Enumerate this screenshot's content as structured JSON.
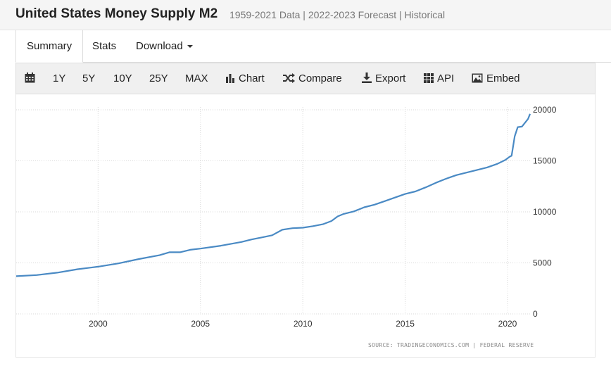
{
  "header": {
    "title": "United States Money Supply M2",
    "subtitle": "1959-2021 Data | 2022-2023 Forecast | Historical"
  },
  "tabs": [
    {
      "label": "Summary",
      "active": true
    },
    {
      "label": "Stats",
      "active": false
    },
    {
      "label": "Download",
      "active": false
    }
  ],
  "toolbar": {
    "calendar_icon": "calendar-icon",
    "ranges": [
      "1Y",
      "5Y",
      "10Y",
      "25Y",
      "MAX"
    ],
    "chart_label": "Chart",
    "compare_label": "Compare",
    "export_label": "Export",
    "api_label": "API",
    "embed_label": "Embed"
  },
  "source_text": "SOURCE: TRADINGECONOMICS.COM | FEDERAL RESERVE",
  "colors": {
    "line": "#4a8ac4",
    "grid": "#d9d9d9"
  },
  "chart_data": {
    "type": "line",
    "title": "",
    "xlabel": "",
    "ylabel": "",
    "xlim": [
      1996.0,
      2021.1
    ],
    "ylim": [
      0,
      20000
    ],
    "x_ticks": [
      2000,
      2005,
      2010,
      2015,
      2020
    ],
    "y_ticks": [
      0,
      5000,
      10000,
      15000,
      20000
    ],
    "grid": true,
    "y_axis_position": "right",
    "series": [
      {
        "points": [
          [
            1996.0,
            3700
          ],
          [
            1997.0,
            3810
          ],
          [
            1998.0,
            4040
          ],
          [
            1999.0,
            4380
          ],
          [
            2000.0,
            4630
          ],
          [
            2001.0,
            4950
          ],
          [
            2002.0,
            5380
          ],
          [
            2003.0,
            5750
          ],
          [
            2003.5,
            6050
          ],
          [
            2004.0,
            6040
          ],
          [
            2004.5,
            6280
          ],
          [
            2005.0,
            6400
          ],
          [
            2006.0,
            6680
          ],
          [
            2007.0,
            7050
          ],
          [
            2007.5,
            7300
          ],
          [
            2008.0,
            7500
          ],
          [
            2008.5,
            7700
          ],
          [
            2009.0,
            8250
          ],
          [
            2009.5,
            8400
          ],
          [
            2010.0,
            8450
          ],
          [
            2010.5,
            8600
          ],
          [
            2011.0,
            8800
          ],
          [
            2011.4,
            9100
          ],
          [
            2011.7,
            9550
          ],
          [
            2012.0,
            9800
          ],
          [
            2012.5,
            10050
          ],
          [
            2013.0,
            10450
          ],
          [
            2013.5,
            10700
          ],
          [
            2014.0,
            11050
          ],
          [
            2014.5,
            11400
          ],
          [
            2015.0,
            11750
          ],
          [
            2015.5,
            12000
          ],
          [
            2016.0,
            12400
          ],
          [
            2016.5,
            12850
          ],
          [
            2017.0,
            13250
          ],
          [
            2017.5,
            13600
          ],
          [
            2018.0,
            13850
          ],
          [
            2018.5,
            14100
          ],
          [
            2019.0,
            14350
          ],
          [
            2019.5,
            14700
          ],
          [
            2019.9,
            15100
          ],
          [
            2020.1,
            15400
          ],
          [
            2020.2,
            15500
          ],
          [
            2020.35,
            17400
          ],
          [
            2020.5,
            18300
          ],
          [
            2020.7,
            18350
          ],
          [
            2021.0,
            19100
          ],
          [
            2021.1,
            19600
          ]
        ]
      }
    ]
  }
}
